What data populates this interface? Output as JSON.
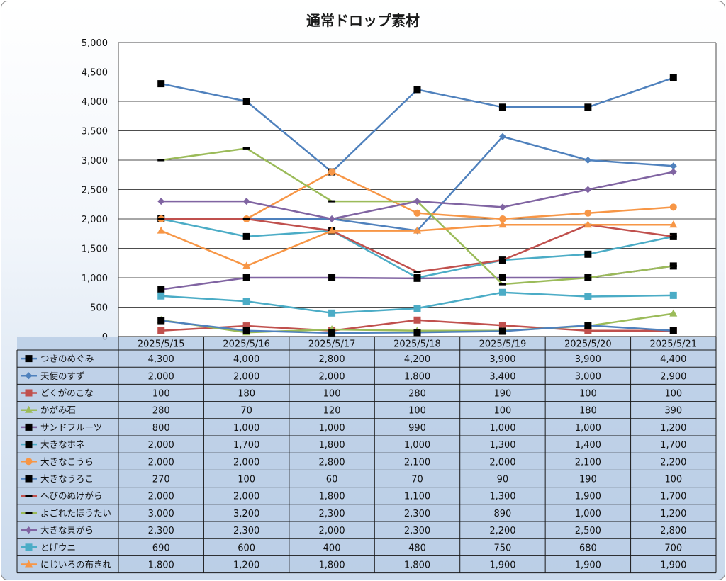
{
  "chart_data": {
    "type": "line",
    "title": "通常ドロップ素材",
    "categories": [
      "2025/5/15",
      "2025/5/16",
      "2025/5/17",
      "2025/5/18",
      "2025/5/19",
      "2025/5/20",
      "2025/5/21"
    ],
    "ylim": [
      0,
      5000
    ],
    "yticks": [
      "0",
      "500",
      "1,000",
      "1,500",
      "2,000",
      "2,500",
      "3,000",
      "3,500",
      "4,000",
      "4,500",
      "5,000"
    ],
    "grid": true,
    "legend": "data-table-left",
    "series": [
      {
        "name": "つきのめぐみ",
        "color": "#4f81bd",
        "marker": "square-black",
        "values": [
          4300,
          4000,
          2800,
          4200,
          3900,
          3900,
          4400
        ],
        "labels": [
          "4,300",
          "4,000",
          "2,800",
          "4,200",
          "3,900",
          "3,900",
          "4,400"
        ]
      },
      {
        "name": "天使のすず",
        "color": "#4f81bd",
        "marker": "diamond",
        "values": [
          2000,
          2000,
          2000,
          1800,
          3400,
          3000,
          2900
        ],
        "labels": [
          "2,000",
          "2,000",
          "2,000",
          "1,800",
          "3,400",
          "3,000",
          "2,900"
        ]
      },
      {
        "name": "どくがのこな",
        "color": "#c0504d",
        "marker": "square",
        "values": [
          100,
          180,
          100,
          280,
          190,
          100,
          100
        ],
        "labels": [
          "100",
          "180",
          "100",
          "280",
          "190",
          "100",
          "100"
        ]
      },
      {
        "name": "かがみ石",
        "color": "#9bbb59",
        "marker": "triangle",
        "values": [
          280,
          70,
          120,
          100,
          100,
          180,
          390
        ],
        "labels": [
          "280",
          "70",
          "120",
          "100",
          "100",
          "180",
          "390"
        ]
      },
      {
        "name": "サンドフルーツ",
        "color": "#8064a2",
        "marker": "square-black",
        "values": [
          800,
          1000,
          1000,
          990,
          1000,
          1000,
          1200
        ],
        "labels": [
          "800",
          "1,000",
          "1,000",
          "990",
          "1,000",
          "1,000",
          "1,200"
        ]
      },
      {
        "name": "大きなホネ",
        "color": "#4bacc6",
        "marker": "square-black",
        "values": [
          2000,
          1700,
          1800,
          1000,
          1300,
          1400,
          1700
        ],
        "labels": [
          "2,000",
          "1,700",
          "1,800",
          "1,000",
          "1,300",
          "1,400",
          "1,700"
        ]
      },
      {
        "name": "大きなこうら",
        "color": "#f79646",
        "marker": "circle",
        "values": [
          2000,
          2000,
          2800,
          2100,
          2000,
          2100,
          2200
        ],
        "labels": [
          "2,000",
          "2,000",
          "2,800",
          "2,100",
          "2,000",
          "2,100",
          "2,200"
        ]
      },
      {
        "name": "大きなうろこ",
        "color": "#4f81bd",
        "marker": "square-black",
        "values": [
          270,
          100,
          60,
          70,
          90,
          190,
          100
        ],
        "labels": [
          "270",
          "100",
          "60",
          "70",
          "90",
          "190",
          "100"
        ]
      },
      {
        "name": "へびのぬけがら",
        "color": "#c0504d",
        "marker": "dash-black",
        "values": [
          2000,
          2000,
          1800,
          1100,
          1300,
          1900,
          1700
        ],
        "labels": [
          "2,000",
          "2,000",
          "1,800",
          "1,100",
          "1,300",
          "1,900",
          "1,700"
        ]
      },
      {
        "name": "よごれたほうたい",
        "color": "#9bbb59",
        "marker": "dash-black",
        "values": [
          3000,
          3200,
          2300,
          2300,
          890,
          1000,
          1200
        ],
        "labels": [
          "3,000",
          "3,200",
          "2,300",
          "2,300",
          "890",
          "1,000",
          "1,200"
        ]
      },
      {
        "name": "大きな貝がら",
        "color": "#8064a2",
        "marker": "diamond",
        "values": [
          2300,
          2300,
          2000,
          2300,
          2200,
          2500,
          2800
        ],
        "labels": [
          "2,300",
          "2,300",
          "2,000",
          "2,300",
          "2,200",
          "2,500",
          "2,800"
        ]
      },
      {
        "name": "とげウニ",
        "color": "#4bacc6",
        "marker": "square",
        "values": [
          690,
          600,
          400,
          480,
          750,
          680,
          700
        ],
        "labels": [
          "690",
          "600",
          "400",
          "480",
          "750",
          "680",
          "700"
        ]
      },
      {
        "name": "にじいろの布きれ",
        "color": "#f79646",
        "marker": "triangle",
        "values": [
          1800,
          1200,
          1800,
          1800,
          1900,
          1900,
          1900
        ],
        "labels": [
          "1,800",
          "1,200",
          "1,800",
          "1,800",
          "1,900",
          "1,900",
          "1,900"
        ]
      }
    ]
  }
}
